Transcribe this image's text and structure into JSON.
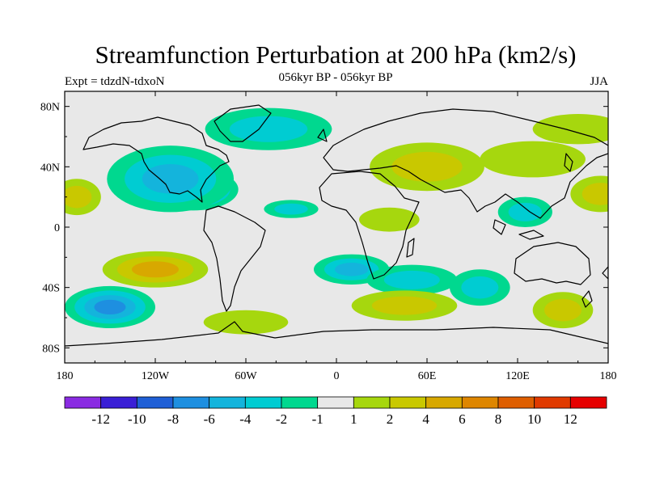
{
  "title": "Streamfunction Perturbation at 200 hPa (km2/s)",
  "left_label": "Expt = tdzdN-tdxoN",
  "center_label": "056kyr BP - 056kyr BP",
  "right_label": "JJA",
  "lon_labels": [
    "180",
    "120W",
    "60W",
    "0",
    "60E",
    "120E",
    "180"
  ],
  "lat_labels": [
    "80N",
    "40N",
    "0",
    "40S",
    "80S"
  ],
  "colorbar": {
    "colors": [
      "#8a2be2",
      "#3a1fd6",
      "#1f5fd6",
      "#1e8fe0",
      "#14b4dc",
      "#00ccd2",
      "#00d88f",
      "#e8e8e8",
      "#a6d70e",
      "#c9c800",
      "#d8a800",
      "#de8600",
      "#de5e00",
      "#e03a00",
      "#e60000"
    ],
    "labels": [
      "-12",
      "-10",
      "-8",
      "-6",
      "-4",
      "-2",
      "-1",
      "1",
      "2",
      "4",
      "6",
      "8",
      "10",
      "12"
    ]
  },
  "chart_data": {
    "type": "heatmap",
    "variable": "Streamfunction Perturbation at 200 hPa (km2/s)",
    "season": "JJA",
    "levels": [
      -12,
      -10,
      -8,
      -6,
      -4,
      -2,
      -1,
      1,
      2,
      4,
      6,
      8,
      10,
      12
    ],
    "lon_range": [
      -180,
      180
    ],
    "lat_range": [
      -90,
      90
    ],
    "features": [
      {
        "lon": -95,
        "lat": 25,
        "rx": 30,
        "ry": 14,
        "value": -8
      },
      {
        "lon": -110,
        "lat": 32,
        "rx": 42,
        "ry": 22,
        "value": -5
      },
      {
        "lon": -45,
        "lat": 65,
        "rx": 42,
        "ry": 14,
        "value": -3
      },
      {
        "lon": -30,
        "lat": 12,
        "rx": 18,
        "ry": 6,
        "value": -2
      },
      {
        "lon": 60,
        "lat": 40,
        "rx": 38,
        "ry": 16,
        "value": 2
      },
      {
        "lon": 130,
        "lat": 45,
        "rx": 35,
        "ry": 12,
        "value": 1.5
      },
      {
        "lon": 125,
        "lat": 10,
        "rx": 18,
        "ry": 10,
        "value": -3
      },
      {
        "lon": 160,
        "lat": 65,
        "rx": 30,
        "ry": 10,
        "value": 1.5
      },
      {
        "lon": 175,
        "lat": 22,
        "rx": 20,
        "ry": 12,
        "value": 2
      },
      {
        "lon": -172,
        "lat": 20,
        "rx": 16,
        "ry": 12,
        "value": 3
      },
      {
        "lon": 35,
        "lat": 5,
        "rx": 20,
        "ry": 8,
        "value": 1.5
      },
      {
        "lon": -120,
        "lat": -28,
        "rx": 35,
        "ry": 12,
        "value": 5
      },
      {
        "lon": -150,
        "lat": -53,
        "rx": 30,
        "ry": 14,
        "value": -6
      },
      {
        "lon": 10,
        "lat": -28,
        "rx": 25,
        "ry": 10,
        "value": -4
      },
      {
        "lon": 50,
        "lat": -35,
        "rx": 30,
        "ry": 10,
        "value": -3
      },
      {
        "lon": 45,
        "lat": -52,
        "rx": 35,
        "ry": 10,
        "value": 3
      },
      {
        "lon": 95,
        "lat": -40,
        "rx": 20,
        "ry": 12,
        "value": -3
      },
      {
        "lon": 150,
        "lat": -55,
        "rx": 20,
        "ry": 12,
        "value": 3
      },
      {
        "lon": -60,
        "lat": -63,
        "rx": 28,
        "ry": 8,
        "value": 1.5
      }
    ]
  }
}
